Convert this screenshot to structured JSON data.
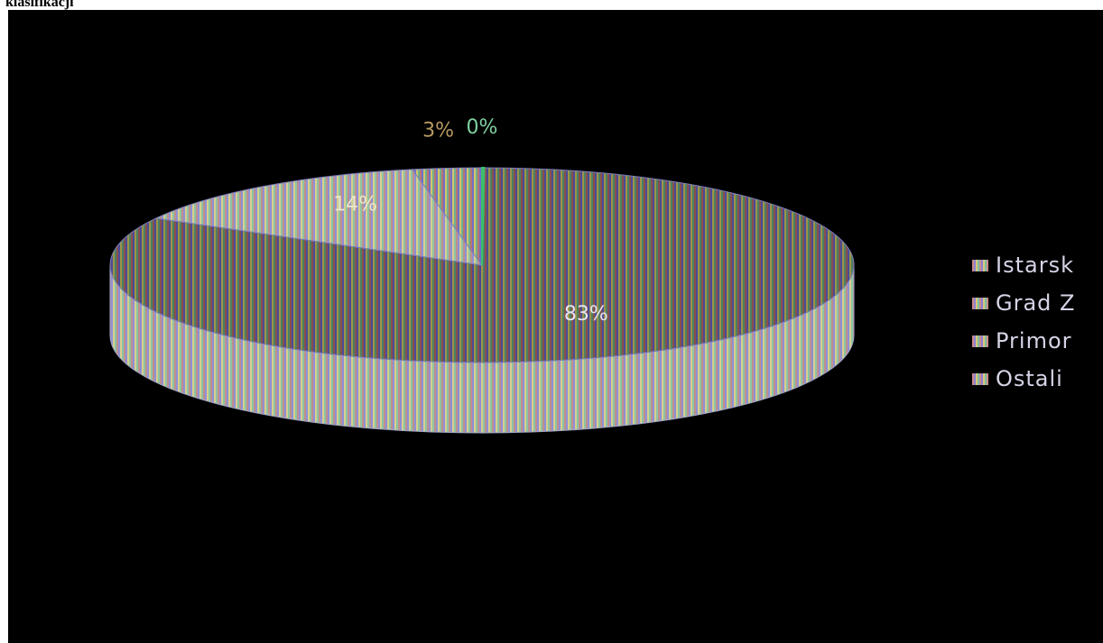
{
  "caption": "klasifikacji",
  "chart_data": {
    "type": "pie",
    "style": "3d",
    "legend_position": "right",
    "slices": [
      {
        "label": "Istarsk",
        "value": 83,
        "data_label": "83%"
      },
      {
        "label": "Grad Z",
        "value": 14,
        "data_label": "14%"
      },
      {
        "label": "Primor",
        "value": 3,
        "data_label": "3%"
      },
      {
        "label": "Ostali",
        "value": 0,
        "data_label": "0%"
      }
    ],
    "stripe_colors": [
      "#b8746f",
      "#6f6fc8",
      "#d1c66d",
      "#6fb08c",
      "#a05e9e",
      "#8aa6d8"
    ]
  }
}
